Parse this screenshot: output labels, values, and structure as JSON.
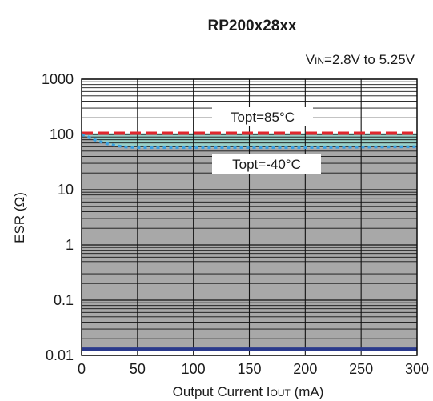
{
  "chart_data": {
    "type": "line",
    "title": "RP200x28xx",
    "condition": {
      "main": "V",
      "sub": "IN",
      "rest": "=2.8V to 5.25V"
    },
    "xlabel": {
      "main": "Output Current I",
      "sub": "OUT",
      "rest": " (mA)"
    },
    "ylabel": "ESR (Ω)",
    "x_ticks": [
      "0",
      "50",
      "100",
      "150",
      "200",
      "250",
      "300"
    ],
    "y_ticks": [
      "0.01",
      "0.1",
      "1",
      "10",
      "100",
      "1000"
    ],
    "xlim": [
      0,
      300
    ],
    "ylim": [
      0.01,
      1000
    ],
    "y_scale": "log",
    "grid": true,
    "stable_region": {
      "lower": 0.013,
      "note": "stable region shaded gray between lower limit and upper curves"
    },
    "series": [
      {
        "name": "Topt=85°C",
        "color": "#e0282e",
        "dash": "dashed",
        "x": [
          0,
          300
        ],
        "y": [
          105,
          105
        ]
      },
      {
        "name": "Topt=-40°C",
        "color": "#3aa0e0",
        "dash": "dotted",
        "x": [
          0,
          5,
          10,
          20,
          30,
          40,
          50,
          100,
          150,
          200,
          250,
          300
        ],
        "y": [
          100,
          92,
          82,
          70,
          63,
          59,
          58,
          58,
          58,
          58,
          59,
          60
        ]
      },
      {
        "name": "",
        "color": "#2b3a8c",
        "dash": "solid",
        "x": [
          0,
          300
        ],
        "y": [
          0.013,
          0.013
        ]
      }
    ],
    "annotations": [
      "Topt=85°C",
      "Topt=-40°C"
    ]
  }
}
